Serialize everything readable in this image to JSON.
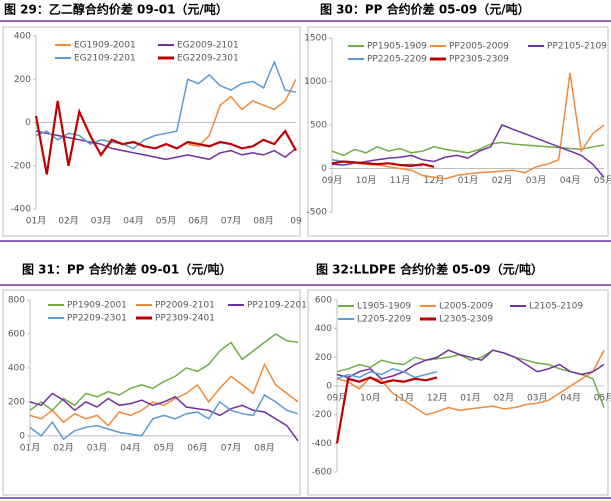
{
  "chart_data": [
    {
      "type": "line",
      "title": "图 29：乙二醇合约价差 09-01（元/吨）",
      "categories": [
        "01月",
        null,
        null,
        "02月",
        null,
        null,
        "03月",
        null,
        null,
        "04月",
        null,
        null,
        "05月",
        null,
        null,
        "06月",
        null,
        null,
        "07月",
        null,
        null,
        "08月",
        null,
        null,
        "09"
      ],
      "ylim": [
        -400,
        400
      ],
      "yticks": [
        -400,
        -200,
        0,
        200,
        400
      ],
      "series": [
        {
          "name": "EG1909-2001",
          "color": "#f08a3c",
          "values": [
            null,
            null,
            null,
            null,
            null,
            null,
            null,
            null,
            null,
            null,
            null,
            null,
            null,
            null,
            -100,
            -110,
            -60,
            80,
            120,
            60,
            100,
            80,
            60,
            100,
            200
          ]
        },
        {
          "name": "EG2009-2101",
          "color": "#7030a0",
          "values": [
            -40,
            -50,
            -60,
            -70,
            -80,
            -90,
            -100,
            -120,
            -130,
            -140,
            -150,
            -160,
            -170,
            -160,
            -150,
            -160,
            -170,
            -140,
            -130,
            -150,
            -140,
            -150,
            -130,
            -160,
            -120
          ]
        },
        {
          "name": "EG2109-2201",
          "color": "#5b9bd5",
          "values": [
            -60,
            -40,
            -80,
            -50,
            -60,
            -100,
            -80,
            -90,
            -100,
            -120,
            -80,
            -60,
            -50,
            -40,
            200,
            180,
            220,
            170,
            150,
            180,
            190,
            160,
            280,
            150,
            140
          ]
        },
        {
          "name": "EG2209-2301",
          "color": "#c00000",
          "values": [
            30,
            -240,
            100,
            -200,
            50,
            -60,
            -150,
            -80,
            -100,
            -90,
            -110,
            -120,
            -100,
            -120,
            -90,
            -100,
            -110,
            -90,
            -100,
            -120,
            -110,
            -80,
            -100,
            -40,
            -130
          ]
        }
      ]
    },
    {
      "type": "line",
      "title": "图 30：PP 合约价差 05-09（元/吨）",
      "categories": [
        "09月",
        null,
        null,
        "10月",
        null,
        null,
        "11月",
        null,
        null,
        "12月",
        null,
        null,
        "01月",
        null,
        null,
        "02月",
        null,
        null,
        "03月",
        null,
        null,
        "04月",
        null,
        null,
        "05月"
      ],
      "ylim": [
        -500,
        1500
      ],
      "yticks": [
        -500,
        0,
        500,
        1000,
        1500
      ],
      "series": [
        {
          "name": "PP1905-1909",
          "color": "#70ad47",
          "values": [
            200,
            150,
            220,
            180,
            250,
            200,
            230,
            180,
            200,
            250,
            220,
            200,
            180,
            220,
            280,
            300,
            280,
            270,
            260,
            250,
            240,
            230,
            220,
            250,
            270
          ]
        },
        {
          "name": "PP2005-2009",
          "color": "#f08a3c",
          "values": [
            100,
            80,
            60,
            50,
            40,
            20,
            0,
            -20,
            -80,
            -100,
            -120,
            -80,
            -60,
            -50,
            -40,
            -30,
            -20,
            -50,
            20,
            50,
            100,
            1100,
            200,
            400,
            500
          ]
        },
        {
          "name": "PP2105-2109",
          "color": "#7030a0",
          "values": [
            50,
            40,
            60,
            80,
            100,
            120,
            130,
            150,
            100,
            80,
            130,
            150,
            120,
            200,
            250,
            500,
            450,
            400,
            350,
            300,
            250,
            200,
            150,
            50,
            -100
          ]
        },
        {
          "name": "PP2205-2209",
          "color": "#5b9bd5",
          "values": [
            100,
            80,
            60,
            70,
            50,
            60,
            40,
            50,
            30,
            null,
            null,
            null,
            null,
            null,
            null,
            null,
            null,
            null,
            null,
            null,
            null,
            null,
            null,
            null,
            null
          ]
        },
        {
          "name": "PP2305-2309",
          "color": "#c00000",
          "values": [
            60,
            80,
            70,
            60,
            50,
            60,
            40,
            30,
            50,
            20,
            null,
            null,
            null,
            null,
            null,
            null,
            null,
            null,
            null,
            null,
            null,
            null,
            null,
            null,
            null
          ]
        }
      ]
    },
    {
      "type": "line",
      "title": "图 31：PP 合约价差 09-01（元/吨）",
      "categories": [
        "01月",
        null,
        null,
        "02月",
        null,
        null,
        "03月",
        null,
        null,
        "04月",
        null,
        null,
        "05月",
        null,
        null,
        "06月",
        null,
        null,
        "07月",
        null,
        null,
        "08月",
        null,
        null,
        null
      ],
      "ylim": [
        -60,
        800
      ],
      "yticks": [
        0,
        200,
        400,
        600,
        800
      ],
      "series": [
        {
          "name": "PP1909-2001",
          "color": "#70ad47",
          "values": [
            150,
            200,
            150,
            220,
            180,
            250,
            230,
            260,
            240,
            280,
            300,
            280,
            320,
            350,
            400,
            380,
            420,
            500,
            550,
            450,
            500,
            550,
            600,
            560,
            550
          ]
        },
        {
          "name": "PP2009-2101",
          "color": "#f08a3c",
          "values": [
            120,
            100,
            150,
            80,
            130,
            100,
            120,
            60,
            140,
            120,
            150,
            200,
            180,
            220,
            250,
            300,
            200,
            280,
            350,
            300,
            250,
            420,
            300,
            250,
            200
          ]
        },
        {
          "name": "PP2109-2201",
          "color": "#7030a0",
          "values": [
            200,
            180,
            250,
            210,
            150,
            200,
            170,
            220,
            180,
            190,
            210,
            180,
            200,
            230,
            170,
            160,
            150,
            120,
            160,
            180,
            150,
            140,
            100,
            60,
            -30
          ]
        },
        {
          "name": "PP2209-2301",
          "color": "#5b9bd5",
          "values": [
            50,
            0,
            80,
            -20,
            30,
            50,
            60,
            40,
            20,
            10,
            0,
            100,
            120,
            100,
            130,
            140,
            100,
            200,
            150,
            130,
            120,
            240,
            200,
            150,
            130
          ]
        },
        {
          "name": "PP2309-2401",
          "color": "#c00000",
          "values": [
            null,
            null,
            null,
            null,
            null,
            null,
            null,
            null,
            null,
            null,
            null,
            null,
            null,
            null,
            null,
            null,
            null,
            null,
            null,
            null,
            null,
            null,
            null,
            null,
            null
          ]
        }
      ]
    },
    {
      "type": "line",
      "title": "图 32:LLDPE 合约价差 05-09（元/吨）",
      "categories": [
        "09月",
        null,
        null,
        "10月",
        null,
        null,
        "11月",
        null,
        null,
        "12月",
        null,
        null,
        "01月",
        null,
        null,
        "02月",
        null,
        null,
        "03月",
        null,
        null,
        "04月",
        null,
        null,
        "05月"
      ],
      "ylim": [
        -600,
        600
      ],
      "yticks": [
        -600,
        -400,
        -200,
        0,
        200,
        400,
        600
      ],
      "series": [
        {
          "name": "L1905-1909",
          "color": "#70ad47",
          "values": [
            100,
            120,
            150,
            130,
            180,
            160,
            150,
            200,
            180,
            190,
            200,
            220,
            180,
            200,
            250,
            230,
            200,
            180,
            160,
            150,
            120,
            100,
            80,
            50,
            -150
          ]
        },
        {
          "name": "L2005-2009",
          "color": "#f08a3c",
          "values": [
            50,
            30,
            -20,
            60,
            40,
            -50,
            -100,
            -150,
            -200,
            -180,
            -150,
            -170,
            -160,
            -150,
            -140,
            -160,
            -150,
            -130,
            -120,
            -100,
            -50,
            0,
            50,
            100,
            250
          ]
        },
        {
          "name": "L2105-2109",
          "color": "#7030a0",
          "values": [
            80,
            60,
            100,
            120,
            50,
            70,
            100,
            150,
            180,
            200,
            250,
            220,
            200,
            180,
            250,
            230,
            200,
            150,
            100,
            120,
            150,
            100,
            80,
            100,
            150
          ]
        },
        {
          "name": "L2205-2209",
          "color": "#5b9bd5",
          "values": [
            50,
            80,
            60,
            100,
            80,
            120,
            100,
            60,
            80,
            100,
            null,
            null,
            null,
            null,
            null,
            null,
            null,
            null,
            null,
            null,
            null,
            null,
            null,
            null,
            null
          ]
        },
        {
          "name": "L2305-2309",
          "color": "#c00000",
          "values": [
            -400,
            50,
            30,
            60,
            20,
            40,
            30,
            50,
            40,
            60,
            null,
            null,
            null,
            null,
            null,
            null,
            null,
            null,
            null,
            null,
            null,
            null,
            null,
            null,
            null
          ]
        }
      ]
    }
  ]
}
